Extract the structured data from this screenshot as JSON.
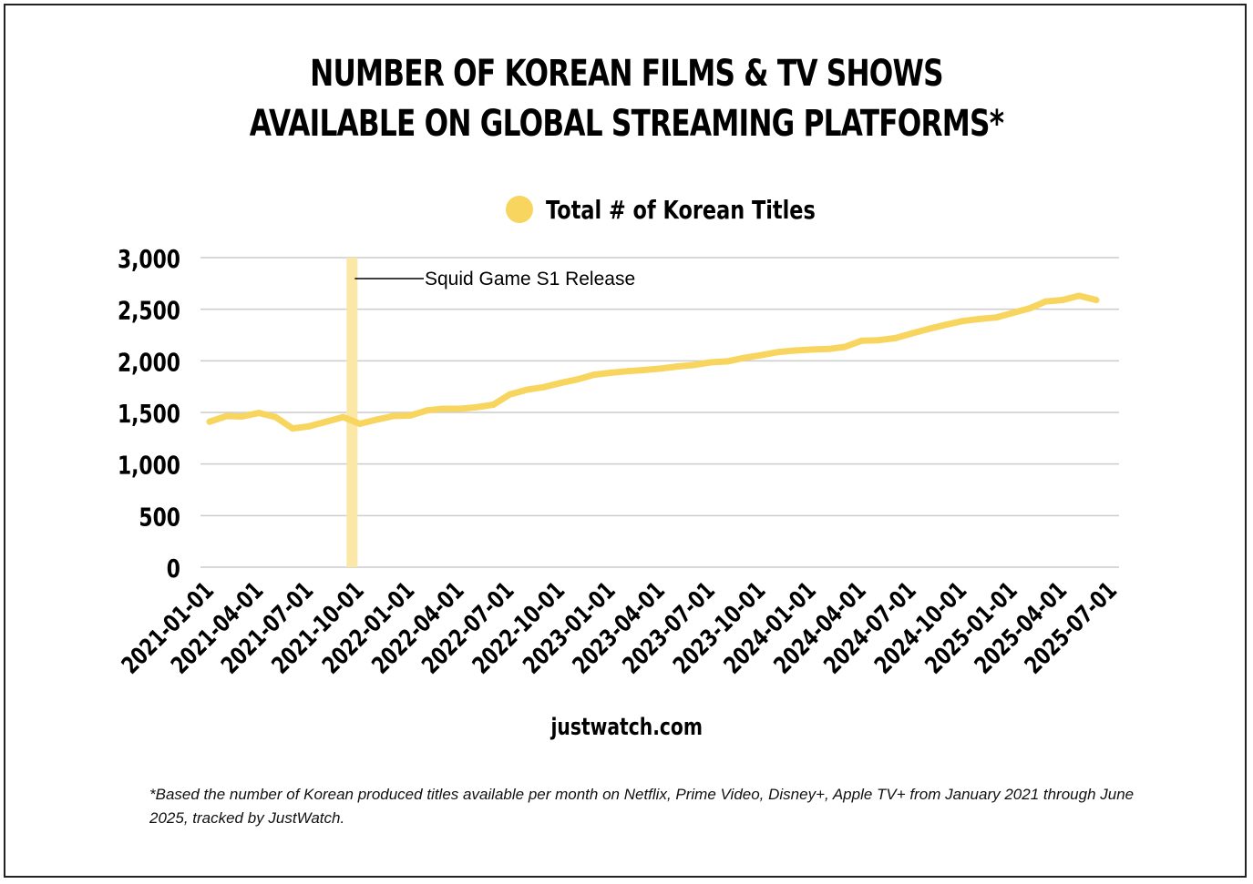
{
  "title_line1": "NUMBER OF KOREAN FILMS & TV SHOWS",
  "title_line2": "AVAILABLE ON GLOBAL STREAMING PLATFORMS*",
  "source": "justwatch.com",
  "footnote": "*Based the number of Korean produced titles available per month on Netflix, Prime Video, Disney+, Apple TV+ from January 2021 through June 2025, tracked by JustWatch.",
  "colors": {
    "series": "#f7d55e",
    "marker": "#fbe8a6",
    "grid": "#cccccc"
  },
  "chart_data": {
    "type": "line",
    "legend_position": "top",
    "grid": true,
    "ylim": [
      0,
      3000
    ],
    "yticks": [
      0,
      500,
      1000,
      1500,
      2000,
      2500,
      3000
    ],
    "ytick_labels": [
      "0",
      "500",
      "1,000",
      "1,500",
      "2,000",
      "2,500",
      "3,000"
    ],
    "xtick_labels": [
      "2021-01-01",
      "2021-04-01",
      "2021-07-01",
      "2021-10-01",
      "2022-01-01",
      "2022-04-01",
      "2022-07-01",
      "2022-10-01",
      "2023-01-01",
      "2023-04-01",
      "2023-07-01",
      "2023-10-01",
      "2024-01-01",
      "2024-04-01",
      "2024-07-01",
      "2024-10-01",
      "2025-01-01",
      "2025-04-01",
      "2025-07-01"
    ],
    "annotation": {
      "label": "Squid Game S1 Release",
      "x": "2021-09-17"
    },
    "series": [
      {
        "name": "Total # of Korean Titles",
        "x": [
          "2021-01-01",
          "2021-02-01",
          "2021-03-01",
          "2021-04-01",
          "2021-05-01",
          "2021-06-01",
          "2021-07-01",
          "2021-08-01",
          "2021-09-01",
          "2021-10-01",
          "2021-11-01",
          "2021-12-01",
          "2022-01-01",
          "2022-02-01",
          "2022-03-01",
          "2022-04-01",
          "2022-05-01",
          "2022-06-01",
          "2022-07-01",
          "2022-08-01",
          "2022-09-01",
          "2022-10-01",
          "2022-11-01",
          "2022-12-01",
          "2023-01-01",
          "2023-02-01",
          "2023-03-01",
          "2023-04-01",
          "2023-05-01",
          "2023-06-01",
          "2023-07-01",
          "2023-08-01",
          "2023-09-01",
          "2023-10-01",
          "2023-11-01",
          "2023-12-01",
          "2024-01-01",
          "2024-02-01",
          "2024-03-01",
          "2024-04-01",
          "2024-05-01",
          "2024-06-01",
          "2024-07-01",
          "2024-08-01",
          "2024-09-01",
          "2024-10-01",
          "2024-11-01",
          "2024-12-01",
          "2025-01-01",
          "2025-02-01",
          "2025-03-01",
          "2025-04-01",
          "2025-05-01",
          "2025-06-01"
        ],
        "values": [
          1410,
          1465,
          1460,
          1495,
          1455,
          1345,
          1365,
          1410,
          1455,
          1390,
          1430,
          1465,
          1470,
          1520,
          1535,
          1535,
          1550,
          1575,
          1675,
          1720,
          1745,
          1785,
          1820,
          1865,
          1885,
          1900,
          1910,
          1925,
          1945,
          1960,
          1985,
          1995,
          2030,
          2055,
          2085,
          2100,
          2110,
          2115,
          2135,
          2195,
          2200,
          2220,
          2265,
          2310,
          2350,
          2385,
          2405,
          2420,
          2465,
          2510,
          2575,
          2590,
          2630,
          2590
        ]
      }
    ]
  }
}
